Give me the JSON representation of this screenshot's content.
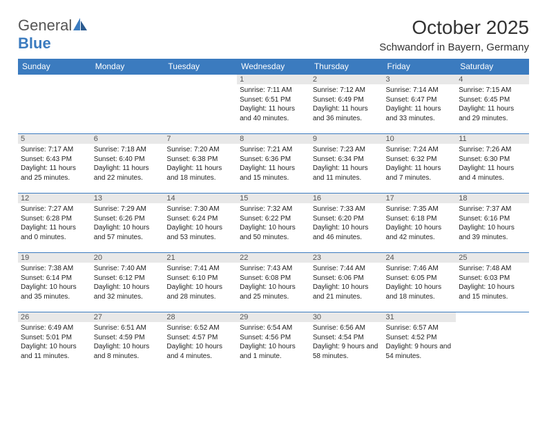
{
  "logo": {
    "text1": "General",
    "text2": "Blue"
  },
  "title": "October 2025",
  "location": "Schwandorf in Bayern, Germany",
  "days_of_week": [
    "Sunday",
    "Monday",
    "Tuesday",
    "Wednesday",
    "Thursday",
    "Friday",
    "Saturday"
  ],
  "colors": {
    "header_bg": "#3b7bbf",
    "header_text": "#ffffff",
    "daynum_bg": "#e8e8e8",
    "cell_border": "#3b7bbf",
    "body_text": "#222222"
  },
  "weeks": [
    [
      {
        "day": "",
        "empty": true
      },
      {
        "day": "",
        "empty": true
      },
      {
        "day": "",
        "empty": true
      },
      {
        "day": "1",
        "sunrise": "Sunrise: 7:11 AM",
        "sunset": "Sunset: 6:51 PM",
        "daylight": "Daylight: 11 hours and 40 minutes."
      },
      {
        "day": "2",
        "sunrise": "Sunrise: 7:12 AM",
        "sunset": "Sunset: 6:49 PM",
        "daylight": "Daylight: 11 hours and 36 minutes."
      },
      {
        "day": "3",
        "sunrise": "Sunrise: 7:14 AM",
        "sunset": "Sunset: 6:47 PM",
        "daylight": "Daylight: 11 hours and 33 minutes."
      },
      {
        "day": "4",
        "sunrise": "Sunrise: 7:15 AM",
        "sunset": "Sunset: 6:45 PM",
        "daylight": "Daylight: 11 hours and 29 minutes."
      }
    ],
    [
      {
        "day": "5",
        "sunrise": "Sunrise: 7:17 AM",
        "sunset": "Sunset: 6:43 PM",
        "daylight": "Daylight: 11 hours and 25 minutes."
      },
      {
        "day": "6",
        "sunrise": "Sunrise: 7:18 AM",
        "sunset": "Sunset: 6:40 PM",
        "daylight": "Daylight: 11 hours and 22 minutes."
      },
      {
        "day": "7",
        "sunrise": "Sunrise: 7:20 AM",
        "sunset": "Sunset: 6:38 PM",
        "daylight": "Daylight: 11 hours and 18 minutes."
      },
      {
        "day": "8",
        "sunrise": "Sunrise: 7:21 AM",
        "sunset": "Sunset: 6:36 PM",
        "daylight": "Daylight: 11 hours and 15 minutes."
      },
      {
        "day": "9",
        "sunrise": "Sunrise: 7:23 AM",
        "sunset": "Sunset: 6:34 PM",
        "daylight": "Daylight: 11 hours and 11 minutes."
      },
      {
        "day": "10",
        "sunrise": "Sunrise: 7:24 AM",
        "sunset": "Sunset: 6:32 PM",
        "daylight": "Daylight: 11 hours and 7 minutes."
      },
      {
        "day": "11",
        "sunrise": "Sunrise: 7:26 AM",
        "sunset": "Sunset: 6:30 PM",
        "daylight": "Daylight: 11 hours and 4 minutes."
      }
    ],
    [
      {
        "day": "12",
        "sunrise": "Sunrise: 7:27 AM",
        "sunset": "Sunset: 6:28 PM",
        "daylight": "Daylight: 11 hours and 0 minutes."
      },
      {
        "day": "13",
        "sunrise": "Sunrise: 7:29 AM",
        "sunset": "Sunset: 6:26 PM",
        "daylight": "Daylight: 10 hours and 57 minutes."
      },
      {
        "day": "14",
        "sunrise": "Sunrise: 7:30 AM",
        "sunset": "Sunset: 6:24 PM",
        "daylight": "Daylight: 10 hours and 53 minutes."
      },
      {
        "day": "15",
        "sunrise": "Sunrise: 7:32 AM",
        "sunset": "Sunset: 6:22 PM",
        "daylight": "Daylight: 10 hours and 50 minutes."
      },
      {
        "day": "16",
        "sunrise": "Sunrise: 7:33 AM",
        "sunset": "Sunset: 6:20 PM",
        "daylight": "Daylight: 10 hours and 46 minutes."
      },
      {
        "day": "17",
        "sunrise": "Sunrise: 7:35 AM",
        "sunset": "Sunset: 6:18 PM",
        "daylight": "Daylight: 10 hours and 42 minutes."
      },
      {
        "day": "18",
        "sunrise": "Sunrise: 7:37 AM",
        "sunset": "Sunset: 6:16 PM",
        "daylight": "Daylight: 10 hours and 39 minutes."
      }
    ],
    [
      {
        "day": "19",
        "sunrise": "Sunrise: 7:38 AM",
        "sunset": "Sunset: 6:14 PM",
        "daylight": "Daylight: 10 hours and 35 minutes."
      },
      {
        "day": "20",
        "sunrise": "Sunrise: 7:40 AM",
        "sunset": "Sunset: 6:12 PM",
        "daylight": "Daylight: 10 hours and 32 minutes."
      },
      {
        "day": "21",
        "sunrise": "Sunrise: 7:41 AM",
        "sunset": "Sunset: 6:10 PM",
        "daylight": "Daylight: 10 hours and 28 minutes."
      },
      {
        "day": "22",
        "sunrise": "Sunrise: 7:43 AM",
        "sunset": "Sunset: 6:08 PM",
        "daylight": "Daylight: 10 hours and 25 minutes."
      },
      {
        "day": "23",
        "sunrise": "Sunrise: 7:44 AM",
        "sunset": "Sunset: 6:06 PM",
        "daylight": "Daylight: 10 hours and 21 minutes."
      },
      {
        "day": "24",
        "sunrise": "Sunrise: 7:46 AM",
        "sunset": "Sunset: 6:05 PM",
        "daylight": "Daylight: 10 hours and 18 minutes."
      },
      {
        "day": "25",
        "sunrise": "Sunrise: 7:48 AM",
        "sunset": "Sunset: 6:03 PM",
        "daylight": "Daylight: 10 hours and 15 minutes."
      }
    ],
    [
      {
        "day": "26",
        "sunrise": "Sunrise: 6:49 AM",
        "sunset": "Sunset: 5:01 PM",
        "daylight": "Daylight: 10 hours and 11 minutes."
      },
      {
        "day": "27",
        "sunrise": "Sunrise: 6:51 AM",
        "sunset": "Sunset: 4:59 PM",
        "daylight": "Daylight: 10 hours and 8 minutes."
      },
      {
        "day": "28",
        "sunrise": "Sunrise: 6:52 AM",
        "sunset": "Sunset: 4:57 PM",
        "daylight": "Daylight: 10 hours and 4 minutes."
      },
      {
        "day": "29",
        "sunrise": "Sunrise: 6:54 AM",
        "sunset": "Sunset: 4:56 PM",
        "daylight": "Daylight: 10 hours and 1 minute."
      },
      {
        "day": "30",
        "sunrise": "Sunrise: 6:56 AM",
        "sunset": "Sunset: 4:54 PM",
        "daylight": "Daylight: 9 hours and 58 minutes."
      },
      {
        "day": "31",
        "sunrise": "Sunrise: 6:57 AM",
        "sunset": "Sunset: 4:52 PM",
        "daylight": "Daylight: 9 hours and 54 minutes."
      },
      {
        "day": "",
        "empty": true
      }
    ]
  ]
}
